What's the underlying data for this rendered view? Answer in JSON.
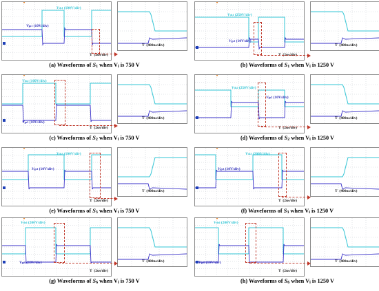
{
  "panels": [
    {
      "id": "a",
      "caption": {
        "prefix": "(a) Waveforms of ",
        "switch": "S",
        "switch_sub": "1",
        "mid": " when V",
        "vin_sub": "i",
        "suffix": " is 750 V"
      },
      "vds": {
        "name": "V",
        "sub": "ds1",
        "scale": "(100V/div)"
      },
      "vgs": {
        "name": "V",
        "sub": "gs1",
        "scale": "(10V/div)"
      },
      "timebase": "2us/div",
      "zoom_timebase": "400ns/div",
      "time_symbol": "T"
    },
    {
      "id": "b",
      "caption": {
        "prefix": "(b) Waveforms of ",
        "switch": "S",
        "switch_sub": "1",
        "mid": " when V",
        "vin_sub": "i",
        "suffix": " is 1250 V"
      },
      "vds": {
        "name": "V",
        "sub": "ds1",
        "scale": "(250V/div)"
      },
      "vgs": {
        "name": "V",
        "sub": "gs1",
        "scale": "(10V/div)"
      },
      "timebase": "2us/div",
      "zoom_timebase": "400ns/div",
      "time_symbol": "T"
    },
    {
      "id": "c",
      "caption": {
        "prefix": "(c) Waveforms of ",
        "switch": "S",
        "switch_sub": "2",
        "mid": " when V",
        "vin_sub": "i",
        "suffix": " is 750 V"
      },
      "vds": {
        "name": "V",
        "sub": "ds2",
        "scale": "(100V/div)"
      },
      "vgs": {
        "name": "V",
        "sub": "gs2",
        "scale": "(10V/div)"
      },
      "timebase": "2us/div",
      "zoom_timebase": "400ns/div",
      "time_symbol": "T"
    },
    {
      "id": "d",
      "caption": {
        "prefix": "(d) Waveforms of ",
        "switch": "S",
        "switch_sub": "2",
        "mid": " when V",
        "vin_sub": "i",
        "suffix": " is 1250 V"
      },
      "vds": {
        "name": "V",
        "sub": "ds2",
        "scale": "(250V/div)"
      },
      "vgs": {
        "name": "V",
        "sub": "gs2",
        "scale": "(10V/div)"
      },
      "timebase": "2us/div",
      "zoom_timebase": "400ns/div",
      "time_symbol": "T"
    },
    {
      "id": "e",
      "caption": {
        "prefix": "(e) Waveforms of ",
        "switch": "S",
        "switch_sub": "3",
        "mid": " when V",
        "vin_sub": "i",
        "suffix": " is 750 V"
      },
      "vds": {
        "name": "V",
        "sub": "ds3",
        "scale": "(100V/div)"
      },
      "vgs": {
        "name": "V",
        "sub": "gs3",
        "scale": "(10V/div)"
      },
      "timebase": "2us/div",
      "zoom_timebase": "400ns/div",
      "time_symbol": "T"
    },
    {
      "id": "f",
      "caption": {
        "prefix": "(f) Waveforms of ",
        "switch": "S",
        "switch_sub": "3",
        "mid": " when V",
        "vin_sub": "i",
        "suffix": " is 1250 V"
      },
      "vds": {
        "name": "V",
        "sub": "ds3",
        "scale": "(200V/div)"
      },
      "vgs": {
        "name": "V",
        "sub": "gs3",
        "scale": "(10V/div)"
      },
      "timebase": "2us/div",
      "zoom_timebase": "400ns/div",
      "time_symbol": "T"
    },
    {
      "id": "g",
      "caption": {
        "prefix": "(g) Waveforms of ",
        "switch": "S",
        "switch_sub": "6",
        "mid": " when V",
        "vin_sub": "i",
        "suffix": " is 750 V"
      },
      "vds": {
        "name": "V",
        "sub": "ds6",
        "scale": "(200V/div)"
      },
      "vgs": {
        "name": "V",
        "sub": "gs6",
        "scale": "(10V/div)"
      },
      "timebase": "2us/div",
      "zoom_timebase": "400ns/div",
      "time_symbol": "T"
    },
    {
      "id": "h",
      "caption": {
        "prefix": "(h) Waveforms of ",
        "switch": "S",
        "switch_sub": "6",
        "mid": " when V",
        "vin_sub": "i",
        "suffix": " is 1250 V"
      },
      "vds": {
        "name": "V",
        "sub": "ds6",
        "scale": "(200V/div)"
      },
      "vgs": {
        "name": "V",
        "sub": "gs6",
        "scale": "(10V/div)"
      },
      "timebase": "2us/div",
      "zoom_timebase": "400ns/div",
      "time_symbol": "T"
    }
  ],
  "colors": {
    "vds_trace": "#31c4d4",
    "vgs_trace": "#3a32c8",
    "zoom_box": "#c0392b",
    "grid": "#b8bcc4"
  }
}
